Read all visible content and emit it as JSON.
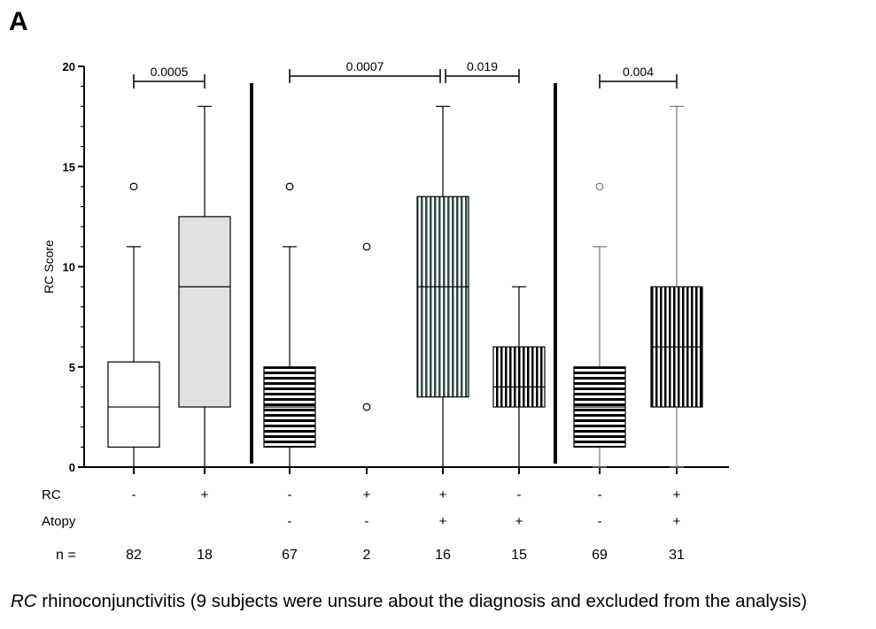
{
  "panel_label": "A",
  "caption": {
    "abbr": "RC",
    "text": " rhinoconjunctivitis (9 subjects were unsure about the diagnosis and excluded from the analysis)"
  },
  "row_labels": {
    "rc": "RC",
    "atopy": "Atopy",
    "n": "n ="
  },
  "chart_data": {
    "type": "box",
    "ylabel": "RC Score",
    "ylim": [
      0,
      20
    ],
    "yticks": [
      0,
      5,
      10,
      15,
      20
    ],
    "groups": [
      {
        "rc": "-",
        "atopy": "",
        "n": "82",
        "fill": "plain",
        "q1": 1,
        "median": 3,
        "q3": 5.25,
        "whisker_low": 0,
        "whisker_high": 11,
        "outliers": [
          14
        ]
      },
      {
        "rc": "+",
        "atopy": "",
        "n": "18",
        "fill": "gray",
        "q1": 3,
        "median": 9,
        "q3": 12.5,
        "whisker_low": 0,
        "whisker_high": 18,
        "outliers": []
      },
      {
        "rc": "-",
        "atopy": "-",
        "n": "67",
        "fill": "hstripe",
        "q1": 1,
        "median": 3,
        "q3": 5,
        "whisker_low": 0,
        "whisker_high": 11,
        "outliers": [
          14
        ]
      },
      {
        "rc": "+",
        "atopy": "-",
        "n": "2",
        "fill": "none",
        "q1": null,
        "median": null,
        "q3": null,
        "whisker_low": null,
        "whisker_high": null,
        "outliers": [
          11,
          3
        ]
      },
      {
        "rc": "+",
        "atopy": "+",
        "n": "16",
        "fill": "vstripe-teal",
        "q1": 3.5,
        "median": 9,
        "q3": 13.5,
        "whisker_low": 0,
        "whisker_high": 18,
        "outliers": []
      },
      {
        "rc": "-",
        "atopy": "+",
        "n": "15",
        "fill": "vstripe",
        "q1": 3,
        "median": 4,
        "q3": 6,
        "whisker_low": 0,
        "whisker_high": 9,
        "outliers": []
      },
      {
        "rc": "-",
        "atopy": "-",
        "n": "69",
        "fill": "hstripe",
        "q1": 1,
        "median": 3,
        "q3": 5,
        "whisker_low": 0,
        "whisker_high": 11,
        "outliers": [
          14
        ]
      },
      {
        "rc": "+",
        "atopy": "+",
        "n": "31",
        "fill": "vstripe",
        "q1": 3,
        "median": 6,
        "q3": 9,
        "whisker_low": 0,
        "whisker_high": 18,
        "outliers": []
      }
    ],
    "separators_after_group": [
      1,
      5
    ],
    "comparisons": [
      {
        "from": 0,
        "to": 1,
        "label": "0.0005"
      },
      {
        "from": 2,
        "to": 4,
        "label": "0.0007"
      },
      {
        "from": 4,
        "to": 5,
        "label": "0.019"
      },
      {
        "from": 6,
        "to": 7,
        "label": "0.004"
      }
    ],
    "colors": {
      "gray": "#e0e2e1",
      "teal": "#2f4a49"
    }
  }
}
